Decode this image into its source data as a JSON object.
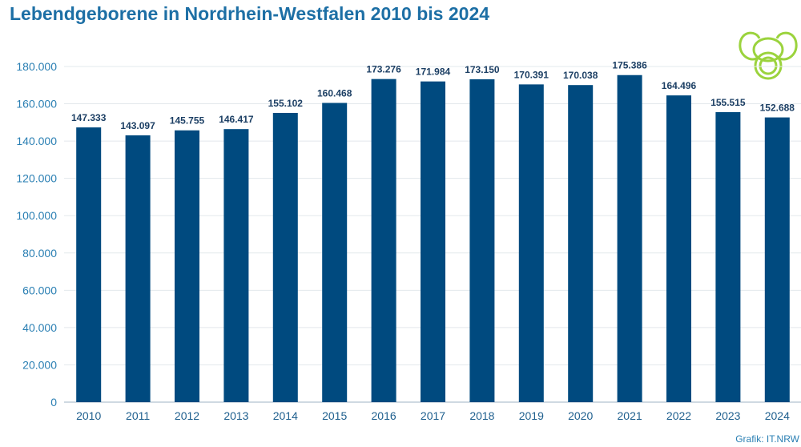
{
  "title": "Lebendgeborene in Nordrhein-Westfalen 2010 bis 2024",
  "source": "Grafik: IT.NRW",
  "icon": "pacifier-icon",
  "colors": {
    "bar": "#004a7f",
    "title": "#1d6fa5",
    "icon": "#9bd33d"
  },
  "chart_data": {
    "type": "bar",
    "title": "Lebendgeborene in Nordrhein-Westfalen 2010 bis 2024",
    "categories": [
      "2010",
      "2011",
      "2012",
      "2013",
      "2014",
      "2015",
      "2016",
      "2017",
      "2018",
      "2019",
      "2020",
      "2021",
      "2022",
      "2023",
      "2024"
    ],
    "values": [
      147333,
      143097,
      145755,
      146417,
      155102,
      160468,
      173276,
      171984,
      173150,
      170391,
      170038,
      175386,
      164496,
      155515,
      152688
    ],
    "data_labels": [
      "147.333",
      "143.097",
      "145.755",
      "146.417",
      "155.102",
      "160.468",
      "173.276",
      "171.984",
      "173.150",
      "170.391",
      "170.038",
      "175.386",
      "164.496",
      "155.515",
      "152.688"
    ],
    "yticks": [
      0,
      20000,
      40000,
      60000,
      80000,
      100000,
      120000,
      140000,
      160000,
      180000
    ],
    "ytick_labels": [
      "0",
      "20.000",
      "40.000",
      "60.000",
      "80.000",
      "100.000",
      "120.000",
      "140.000",
      "160.000",
      "180.000"
    ],
    "ylim": [
      0,
      180000
    ],
    "grid": true,
    "xlabel": "",
    "ylabel": ""
  }
}
